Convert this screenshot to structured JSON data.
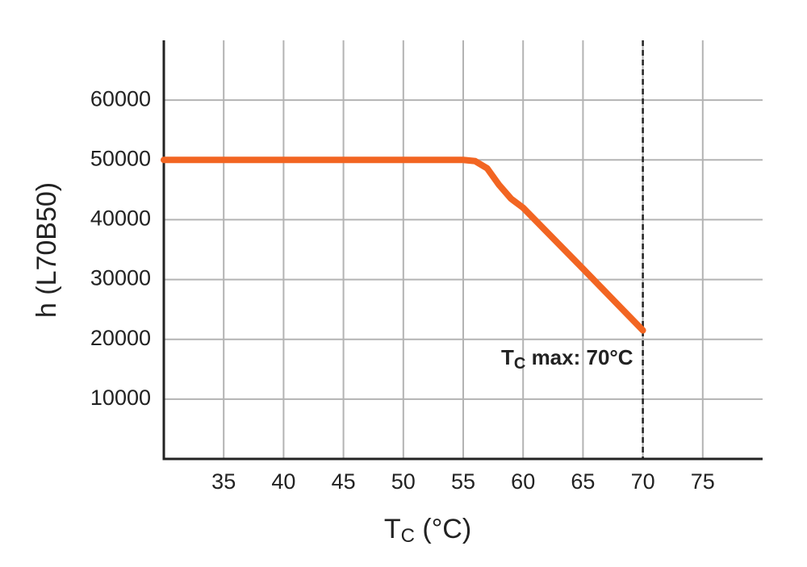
{
  "chart_data": {
    "type": "line",
    "x_label": {
      "main": "T",
      "sub": "C",
      "rest": " (°C)"
    },
    "y_label": "h (L70B50)",
    "annotation": {
      "main": "T",
      "sub": "C",
      "rest": " max: 70°C"
    },
    "vline": 70,
    "x": [
      30,
      55,
      56,
      57,
      58,
      59,
      60,
      65,
      70
    ],
    "series": [
      {
        "color": "#f26522",
        "values": [
          50000,
          50000,
          49800,
          48600,
          45800,
          43500,
          42000,
          31800,
          21500
        ]
      }
    ],
    "xlim": [
      30,
      80
    ],
    "xticks": [
      35,
      40,
      45,
      50,
      55,
      60,
      65,
      70,
      75
    ],
    "ylim": [
      0,
      70000
    ],
    "yticks": [
      10000,
      20000,
      30000,
      40000,
      50000,
      60000
    ],
    "grid": true
  }
}
